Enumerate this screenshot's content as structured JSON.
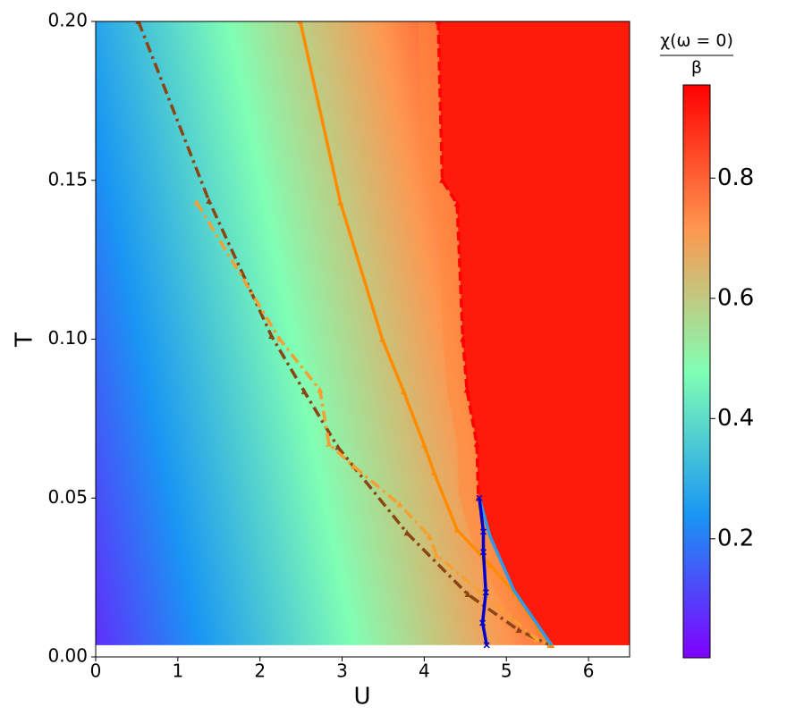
{
  "chart_data": {
    "type": "line",
    "xlabel": "U",
    "ylabel": "T",
    "xlim": [
      0,
      6.5
    ],
    "xticks": [
      0,
      1,
      2,
      3,
      4,
      5,
      6
    ],
    "ylim": [
      0,
      0.2
    ],
    "yticks": [
      {
        "value": 0,
        "label": "0.00"
      },
      {
        "value": 0.05,
        "label": "0.05"
      },
      {
        "value": 0.1,
        "label": "0.10"
      },
      {
        "value": 0.15,
        "label": "0.15"
      },
      {
        "value": 0.2,
        "label": "0.20"
      }
    ],
    "series": [
      {
        "color": "#8b4513",
        "style": "dashdot",
        "marker": "triangle",
        "x": [
          0.52,
          1.38,
          2.14,
          2.54,
          2.95,
          3.79,
          4.53,
          5.15,
          5.53
        ],
        "values": [
          0.2,
          0.1435,
          0.101,
          0.0835,
          0.066,
          0.039,
          0.0197,
          0.0084,
          0.0037
        ]
      },
      {
        "color": "#f5a030",
        "style": "dashdot",
        "marker": "triangle",
        "x": [
          1.23,
          2.24,
          2.73,
          2.84,
          3.14,
          3.7,
          4.06,
          4.15,
          4.66,
          5.04,
          5.37,
          5.53
        ],
        "values": [
          0.143,
          0.1,
          0.084,
          0.067,
          0.06,
          0.048,
          0.038,
          0.032,
          0.021,
          0.0127,
          0.0056,
          0.0037
        ]
      },
      {
        "color": "#ff8c00",
        "style": "solid",
        "marker": "triangle",
        "x": [
          2.49,
          2.98,
          3.49,
          3.75,
          4.0,
          4.12,
          4.4,
          4.8,
          5.1,
          5.4,
          5.55
        ],
        "values": [
          0.2,
          0.143,
          0.1,
          0.0835,
          0.0667,
          0.058,
          0.04,
          0.029,
          0.02,
          0.0084,
          0.0037
        ]
      },
      {
        "color": "#ff0000",
        "style": "dashed",
        "marker": "triangle",
        "x": [
          4.17,
          4.22,
          4.4,
          4.47,
          4.52,
          4.64,
          4.66
        ],
        "values": [
          0.2,
          0.15,
          0.1426,
          0.1,
          0.084,
          0.067,
          0.05
        ]
      },
      {
        "color": "#3399e6",
        "style": "solid",
        "marker": "none",
        "x": [
          4.67,
          4.8,
          5.09,
          5.55
        ],
        "values": [
          0.05,
          0.038,
          0.021,
          0.0037
        ]
      },
      {
        "color": "#0000cc",
        "style": "solid",
        "marker": "x",
        "x": [
          4.67,
          4.72,
          4.72,
          4.75,
          4.71,
          4.76
        ],
        "values": [
          0.05,
          0.0394,
          0.033,
          0.0203,
          0.0107,
          0.0037
        ]
      }
    ],
    "colorbar": {
      "label_top": "χ(ω = 0)",
      "label_bottom": "β",
      "lim": [
        0.002,
        0.955
      ],
      "ticks": [
        0.2,
        0.4,
        0.6,
        0.8
      ],
      "colormap": [
        "#8000ff",
        "#1996f3",
        "#80ffb4",
        "#ff964f",
        "#ff0000"
      ]
    }
  }
}
